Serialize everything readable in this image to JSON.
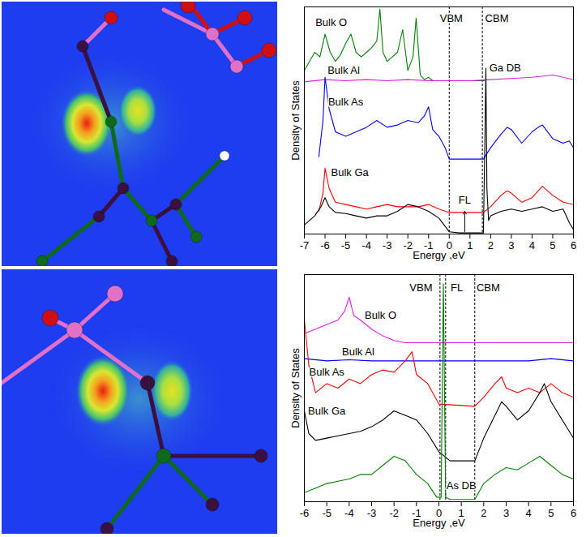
{
  "chart_data": [
    {
      "type": "line",
      "xlabel": "Energy ,eV",
      "ylabel": "Density of States",
      "xlim": [
        -7,
        6
      ],
      "xticks": [
        -7,
        -6,
        -5,
        -4,
        -3,
        -2,
        -1,
        0,
        1,
        2,
        3,
        4,
        5,
        6
      ],
      "ylim": [
        0,
        100
      ],
      "yticks": [],
      "tick_labels": "x",
      "series": [
        {
          "color": "#008000",
          "x": [
            -7,
            -6.75,
            -6.5,
            -6.25,
            -6,
            -5.75,
            -5.5,
            -5.25,
            -5,
            -4.75,
            -4.5,
            -4.25,
            -4,
            -3.75,
            -3.5,
            -3.35,
            -3.2,
            -3,
            -2.75,
            -2.5,
            -2.25,
            -2,
            -1.75,
            -1.6,
            -1.4,
            -1.2,
            -1,
            -0.8,
            -0.5,
            0,
            0.5,
            1,
            1.5,
            1.7
          ],
          "values": [
            72,
            76,
            80,
            78,
            88,
            80,
            76,
            79,
            84,
            88,
            80,
            78,
            80,
            82,
            85,
            99,
            80,
            76,
            78,
            80,
            90,
            72,
            78,
            95,
            70,
            68,
            69,
            67.5,
            67.5,
            67.5,
            67.5,
            67.5,
            67.5,
            67.5
          ]
        },
        {
          "color": "#e020e0",
          "x": [
            -7,
            -6,
            -5,
            -4,
            -3,
            -2,
            -1,
            0,
            1,
            2,
            3,
            4,
            5,
            6
          ],
          "values": [
            67,
            68,
            67.5,
            68,
            67.5,
            68,
            67.5,
            67.5,
            67.5,
            68,
            68.5,
            69,
            70,
            68
          ]
        },
        {
          "color": "#0000ff",
          "x": [
            -6.3,
            -6.1,
            -6,
            -5.8,
            -5.5,
            -5,
            -4.5,
            -4,
            -3.5,
            -3,
            -2.5,
            -2,
            -1.5,
            -1.2,
            -1,
            -0.8,
            -0.5,
            -0.2,
            0,
            0.5,
            1,
            1.5,
            1.65,
            2,
            2.5,
            2.8,
            3,
            3.5,
            4,
            4.3,
            4.5,
            5,
            5.5,
            5.8,
            6
          ],
          "values": [
            34,
            50,
            69,
            55,
            45,
            43,
            45,
            47,
            50,
            47,
            48,
            50,
            49,
            52,
            56,
            46,
            43,
            38,
            33,
            33,
            33,
            33,
            33,
            38,
            44,
            47,
            46,
            40,
            45,
            47,
            48,
            42,
            40,
            41,
            38
          ]
        },
        {
          "color": "#ff0000",
          "x": [
            -6.3,
            -6.1,
            -6,
            -5.8,
            -5.5,
            -5,
            -4.5,
            -4,
            -3.5,
            -3,
            -2.5,
            -2,
            -1.5,
            -1,
            -0.5,
            0,
            0.5,
            1,
            1.5,
            1.65,
            2,
            2.5,
            2.8,
            3,
            3.5,
            4,
            4.5,
            5,
            5.5,
            6
          ],
          "values": [
            10,
            18,
            29,
            20,
            14,
            13,
            12,
            11,
            12,
            13,
            12,
            12,
            12,
            13,
            11,
            9.5,
            9.5,
            9.5,
            9.5,
            9.5,
            12,
            17,
            19,
            18,
            14,
            16,
            21,
            17,
            14,
            13
          ]
        },
        {
          "color": "#000000",
          "x": [
            -7,
            -6.5,
            -6.2,
            -6,
            -5.8,
            -5.5,
            -5,
            -4.5,
            -4,
            -3.5,
            -3,
            -2.5,
            -2,
            -1.5,
            -1,
            -0.5,
            0,
            0.5,
            1,
            1.5,
            1.65,
            1.72,
            1.77,
            1.82,
            1.9,
            2,
            2.5,
            3,
            3.5,
            4,
            4.5,
            5,
            5.5,
            5.8,
            6
          ],
          "values": [
            4,
            8,
            12,
            16,
            12,
            9.5,
            9,
            8,
            7,
            8,
            8,
            10,
            13,
            12,
            10,
            7,
            1,
            0.5,
            0.5,
            0.5,
            0.5,
            40,
            73,
            20,
            6,
            8,
            10,
            11,
            10,
            11,
            12,
            10,
            11,
            5,
            2
          ]
        }
      ],
      "vlines": [
        0,
        1.6
      ],
      "annotations": [
        {
          "text": "VBM",
          "x": 0.1,
          "y": 95
        },
        {
          "text": "CBM",
          "x": 2.3,
          "y": 95
        },
        {
          "text": "Bulk O",
          "x": -5.7,
          "y": 93
        },
        {
          "text": "Bulk Al",
          "x": -5.1,
          "y": 72
        },
        {
          "text": "Bulk As",
          "x": -5.0,
          "y": 58
        },
        {
          "text": "Bulk Ga",
          "x": -4.8,
          "y": 27
        },
        {
          "text": "Ga DB",
          "x": 2.7,
          "y": 73
        },
        {
          "text": "FL",
          "x": 0.75,
          "y": 15
        }
      ],
      "arrows": [
        {
          "x": 0.75,
          "y1": 1,
          "y2": 10
        }
      ]
    },
    {
      "type": "line",
      "xlabel": "Energy ,eV",
      "ylabel": "Density of States",
      "xlim": [
        -6,
        6
      ],
      "xticks": [
        -6,
        -5,
        -4,
        -3,
        -2,
        -1,
        0,
        1,
        2,
        3,
        4,
        5,
        6
      ],
      "ylim": [
        0,
        100
      ],
      "yticks": [],
      "tick_labels": "x",
      "series": [
        {
          "color": "#e020e0",
          "x": [
            -6,
            -5.5,
            -5,
            -4.5,
            -4.2,
            -4,
            -3.8,
            -3.5,
            -3,
            -2.5,
            -2,
            -1.5,
            -1,
            0,
            1,
            2,
            3,
            4,
            5,
            6
          ],
          "values": [
            74,
            76,
            78,
            80,
            84,
            90,
            82,
            80,
            76,
            73,
            71,
            70,
            70,
            70,
            70,
            70,
            70,
            70,
            70,
            70
          ]
        },
        {
          "color": "#0000ff",
          "x": [
            -6,
            -5,
            -4,
            -3,
            -2,
            -1,
            0,
            1,
            2,
            3,
            4,
            5,
            6
          ],
          "values": [
            63,
            62,
            62.5,
            62,
            62,
            62,
            62,
            62,
            62,
            62,
            62,
            63,
            62
          ]
        },
        {
          "color": "#ff0000",
          "x": [
            -6,
            -5.8,
            -5.5,
            -5,
            -4.5,
            -4,
            -3.5,
            -3,
            -2.5,
            -2,
            -1.5,
            -1.2,
            -1,
            -0.5,
            0,
            1.6,
            2,
            2.5,
            2.8,
            3,
            3.5,
            4,
            4.5,
            5,
            5.5,
            6
          ],
          "values": [
            80,
            60,
            48,
            52,
            50,
            54,
            52,
            56,
            58,
            57,
            62,
            66,
            56,
            52,
            43,
            42,
            46,
            52,
            55,
            50,
            48,
            50,
            48,
            52,
            48,
            46
          ]
        },
        {
          "color": "#000000",
          "x": [
            -6,
            -5.8,
            -5.5,
            -5,
            -4.5,
            -4,
            -3.5,
            -3,
            -2.5,
            -2,
            -1.5,
            -1,
            -0.5,
            0,
            0.5,
            1,
            1.6,
            2,
            2.5,
            2.8,
            3,
            3.5,
            4,
            4.5,
            4.7,
            5,
            5.5,
            6
          ],
          "values": [
            40,
            30,
            27,
            28,
            29,
            30,
            31,
            33,
            36,
            40,
            38,
            36,
            30,
            22,
            18,
            18,
            18,
            28,
            38,
            44,
            42,
            36,
            40,
            48,
            52,
            44,
            36,
            28
          ]
        },
        {
          "color": "#008000",
          "x": [
            -6,
            -5.5,
            -5,
            -4.5,
            -4,
            -3.5,
            -3,
            -2.5,
            -2,
            -1.5,
            -1,
            -0.5,
            -0.1,
            0.1,
            0.15,
            0.2,
            0.25,
            0.3,
            0.5,
            1,
            1.6,
            2,
            2.5,
            3,
            3.5,
            4,
            4.5,
            5,
            5.5,
            6
          ],
          "values": [
            4,
            6,
            8,
            9,
            10,
            12,
            12,
            16,
            20,
            18,
            12,
            8,
            2,
            2,
            50,
            96,
            50,
            2,
            1,
            1,
            1,
            8,
            12,
            15,
            14,
            17,
            20,
            16,
            12,
            10
          ]
        }
      ],
      "vlines": [
        0.05,
        0.3,
        1.6
      ],
      "annotations": [
        {
          "text": "VBM",
          "x": -0.8,
          "y": 94
        },
        {
          "text": "FL",
          "x": 0.8,
          "y": 94
        },
        {
          "text": "CBM",
          "x": 2.2,
          "y": 94
        },
        {
          "text": "Bulk O",
          "x": -2.6,
          "y": 82
        },
        {
          "text": "Bulk Al",
          "x": -3.6,
          "y": 66
        },
        {
          "text": "Bulk As",
          "x": -5.0,
          "y": 57
        },
        {
          "text": "Bulk Ga",
          "x": -5.0,
          "y": 40
        },
        {
          "text": "As DB",
          "x": 1.0,
          "y": 7
        }
      ]
    }
  ]
}
